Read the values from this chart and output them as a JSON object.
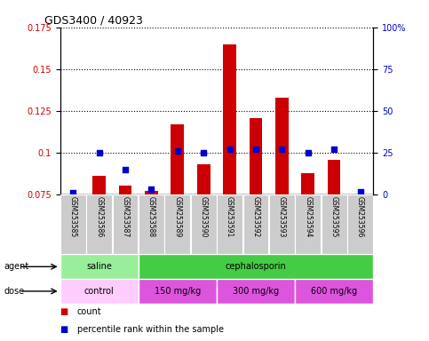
{
  "title": "GDS3400 / 40923",
  "samples": [
    "GSM253585",
    "GSM253586",
    "GSM253587",
    "GSM253588",
    "GSM253589",
    "GSM253590",
    "GSM253591",
    "GSM253592",
    "GSM253593",
    "GSM253594",
    "GSM253595",
    "GSM253596"
  ],
  "count_values": [
    0.0752,
    0.0862,
    0.0802,
    0.0772,
    0.117,
    0.093,
    0.165,
    0.121,
    0.133,
    0.088,
    0.096,
    0.0742
  ],
  "percentile_values": [
    1.0,
    25.0,
    15.0,
    3.5,
    26.0,
    25.0,
    27.0,
    27.0,
    27.0,
    25.0,
    27.0,
    1.5
  ],
  "ylim_left": [
    0.075,
    0.175
  ],
  "ylim_right": [
    0,
    100
  ],
  "yticks_left": [
    0.075,
    0.1,
    0.125,
    0.15,
    0.175
  ],
  "ytick_labels_left": [
    "0.075",
    "0.1",
    "0.125",
    "0.15",
    "0.175"
  ],
  "yticks_right": [
    0,
    25,
    50,
    75,
    100
  ],
  "ytick_labels_right": [
    "0",
    "25",
    "50",
    "75",
    "100%"
  ],
  "bar_color": "#cc0000",
  "dot_color": "#0000cc",
  "bar_bottom": 0.075,
  "agent_segments": [
    {
      "label": "saline",
      "start": 0,
      "end": 3,
      "color": "#99ee99"
    },
    {
      "label": "cephalosporin",
      "start": 3,
      "end": 12,
      "color": "#44cc44"
    }
  ],
  "dose_segments": [
    {
      "label": "control",
      "start": 0,
      "end": 3,
      "color": "#ffccff"
    },
    {
      "label": "150 mg/kg",
      "start": 3,
      "end": 6,
      "color": "#dd55dd"
    },
    {
      "label": "300 mg/kg",
      "start": 6,
      "end": 9,
      "color": "#dd55dd"
    },
    {
      "label": "600 mg/kg",
      "start": 9,
      "end": 12,
      "color": "#dd55dd"
    }
  ],
  "legend_items": [
    {
      "label": "count",
      "color": "#cc0000"
    },
    {
      "label": "percentile rank within the sample",
      "color": "#0000cc"
    }
  ],
  "label_agent": "agent",
  "label_dose": "dose",
  "gray_bg": "#cccccc",
  "bar_width": 0.5
}
